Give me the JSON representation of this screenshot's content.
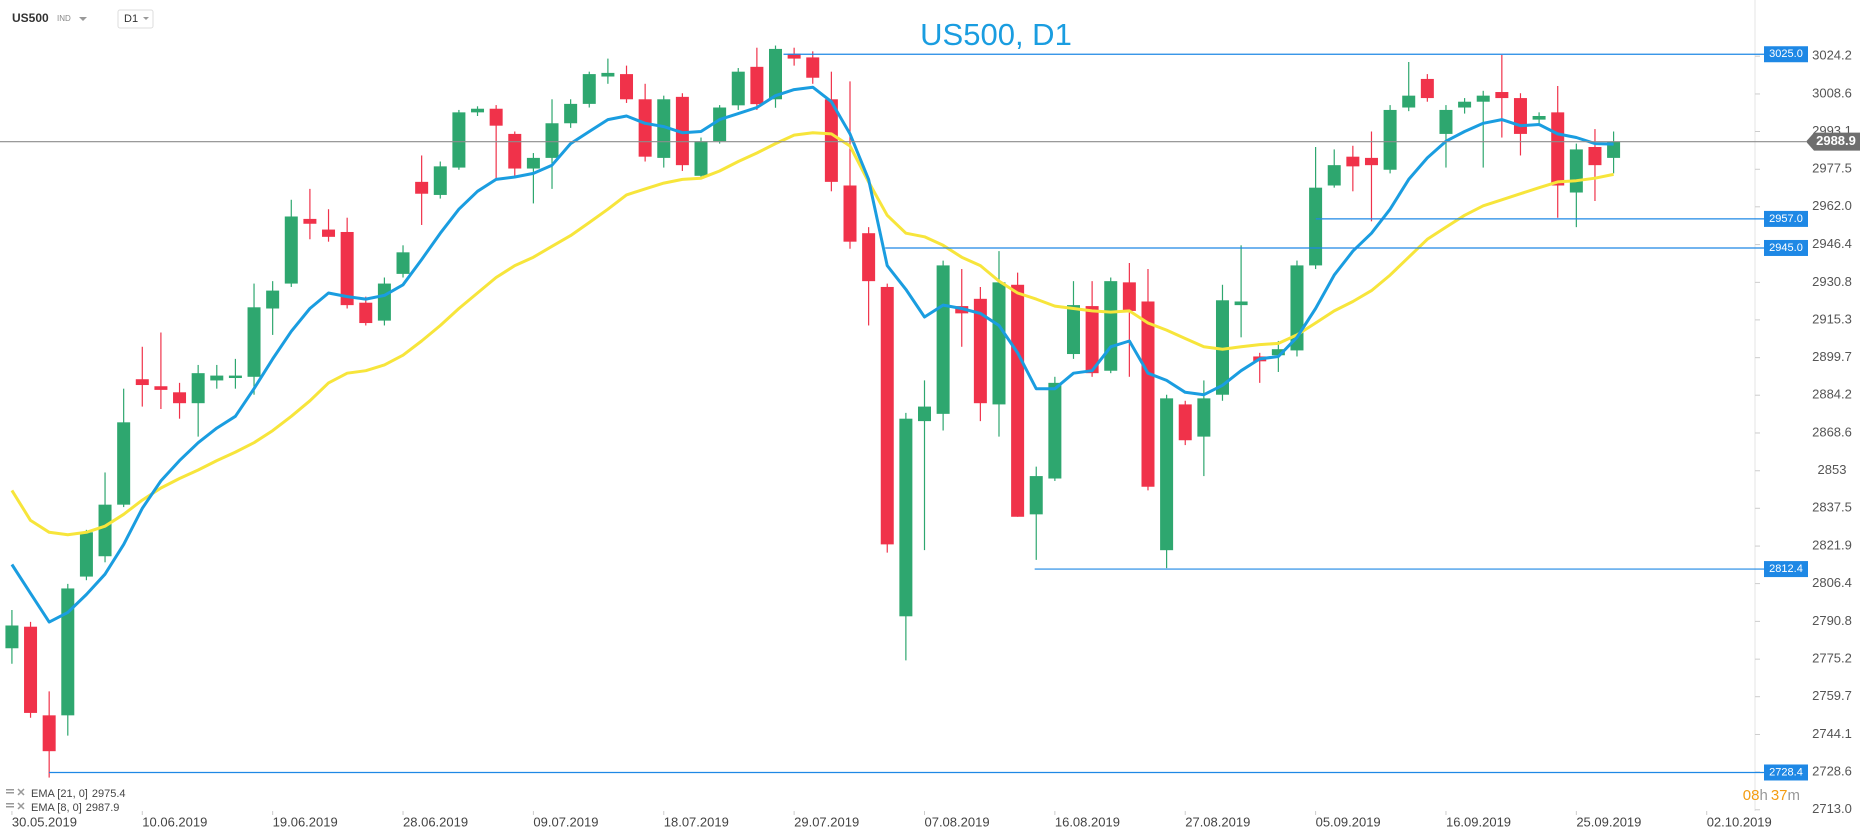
{
  "toolbar": {
    "symbol": "US500",
    "market": "IND",
    "timeframe": "D1"
  },
  "timer": [
    "08",
    "h",
    "37",
    "m"
  ],
  "chart_data": {
    "type": "candlestick",
    "title": "US500, D1",
    "up_color": "#2ea76f",
    "down_color": "#f0324a",
    "xlim": [
      -0.64,
      93.58
    ],
    "ylim": [
      2712.5,
      3047.4
    ],
    "xticks": [
      {
        "value": 0,
        "label": "30.05.2019"
      },
      {
        "value": 7,
        "label": "10.06.2019"
      },
      {
        "value": 14,
        "label": "19.06.2019"
      },
      {
        "value": 21,
        "label": "28.06.2019"
      },
      {
        "value": 28,
        "label": "09.07.2019"
      },
      {
        "value": 35,
        "label": "18.07.2019"
      },
      {
        "value": 42,
        "label": "29.07.2019"
      },
      {
        "value": 49,
        "label": "07.08.2019"
      },
      {
        "value": 56,
        "label": "16.08.2019"
      },
      {
        "value": 63,
        "label": "27.08.2019"
      },
      {
        "value": 70,
        "label": "05.09.2019"
      },
      {
        "value": 77,
        "label": "16.09.2019"
      },
      {
        "value": 84,
        "label": "25.09.2019"
      },
      {
        "value": 91,
        "label": "02.10.2019"
      }
    ],
    "yticks": [
      3024.2,
      3008.6,
      2993.1,
      2977.5,
      {
        "value": 2962,
        "label": "2962.0"
      },
      2946.4,
      2930.8,
      2915.3,
      2899.7,
      2884.2,
      2868.6,
      2853.0,
      2837.5,
      2821.9,
      2806.4,
      2790.8,
      2775.2,
      2759.7,
      2744.1,
      2728.6,
      {
        "value": 2713,
        "label": "2713.0"
      }
    ],
    "open": [
      2779.7,
      2788.6,
      2752.0,
      2752.0,
      2809.3,
      2817.7,
      2839.0,
      2890.8,
      2887.9,
      2885.4,
      2880.9,
      2890.3,
      2891.3,
      2891.8,
      2920.0,
      2930.3,
      2957.0,
      2952.6,
      2951.6,
      2922.4,
      2915.0,
      2934.3,
      2972.3,
      2966.9,
      2978.2,
      3001.0,
      3002.5,
      2992.1,
      2977.8,
      2982.2,
      2996.5,
      3004.5,
      3015.8,
      3016.8,
      3006.4,
      2982.2,
      3007.4,
      2974.8,
      2989.1,
      3003.9,
      3019.8,
      3006.4,
      3025.2,
      3023.7,
      3006.4,
      2970.8,
      2951.1,
      2928.9,
      2792.9,
      2873.5,
      2876.5,
      2921.0,
      2924.0,
      2880.4,
      2929.8,
      2835.0,
      2849.8,
      2901.2,
      2921.0,
      2894.3,
      2930.8,
      2922.9,
      2820.2,
      2880.4,
      2867.1,
      2884.4,
      2921.4,
      2900.2,
      2900.7,
      2902.7,
      2937.8,
      2970.8,
      2982.7,
      2982.2,
      2977.3,
      3003.0,
      3014.8,
      2992.1,
      3003.0,
      3005.4,
      3009.4,
      3006.9,
      2998.0,
      3001.0,
      2967.9,
      2986.7,
      2982.2
    ],
    "high": [
      2795.5,
      2790.6,
      2761.9,
      2806.3,
      2828.6,
      2852.3,
      2886.9,
      2904.2,
      2910.1,
      2889.3,
      2896.7,
      2896.7,
      2899.2,
      2930.3,
      2931.3,
      2964.9,
      2969.4,
      2961.0,
      2957.5,
      2924.9,
      2932.8,
      2946.1,
      2983.2,
      2980.7,
      3002.0,
      3003.5,
      3004.0,
      2993.1,
      2984.2,
      3006.4,
      3006.4,
      3017.8,
      3023.2,
      3020.3,
      3012.8,
      3007.9,
      3008.9,
      2990.6,
      3004.0,
      3019.3,
      3027.7,
      3028.6,
      3027.7,
      3026.2,
      3017.8,
      3013.8,
      2953.6,
      2930.3,
      2876.9,
      2890.3,
      2939.8,
      2936.3,
      2928.9,
      2943.7,
      2934.8,
      2854.7,
      2891.8,
      2931.3,
      2931.3,
      2932.8,
      2938.8,
      2936.3,
      2884.4,
      2881.9,
      2890.3,
      2929.8,
      2946.1,
      2901.7,
      2906.6,
      2939.8,
      2986.7,
      2985.7,
      2987.2,
      2993.1,
      3004.0,
      3021.8,
      3016.8,
      3004.0,
      3006.9,
      3009.9,
      3024.7,
      3008.9,
      3001.0,
      3011.9,
      2988.1,
      2994.1,
      2993.1
    ],
    "low": [
      2773.3,
      2751.0,
      2726.3,
      2743.6,
      2807.8,
      2815.2,
      2838.0,
      2879.5,
      2878.5,
      2874.5,
      2867.1,
      2886.9,
      2886.9,
      2884.4,
      2909.1,
      2928.9,
      2948.6,
      2947.6,
      2920.0,
      2913.0,
      2913.0,
      2932.8,
      2954.5,
      2965.4,
      2977.3,
      2999.5,
      2973.3,
      2974.3,
      2963.4,
      2969.4,
      2994.6,
      3003.0,
      3012.8,
      3004.9,
      2980.7,
      2978.2,
      2976.8,
      2973.3,
      2988.1,
      3002.0,
      3002.0,
      3002.9,
      3020.3,
      3012.8,
      2968.4,
      2944.7,
      2913.0,
      2819.2,
      2774.7,
      2820.2,
      2869.6,
      2904.2,
      2873.5,
      2867.1,
      2834.0,
      2816.2,
      2848.8,
      2899.2,
      2891.8,
      2893.3,
      2891.8,
      2844.9,
      2812.8,
      2863.6,
      2850.8,
      2881.9,
      2908.1,
      2889.3,
      2893.8,
      2900.2,
      2936.3,
      2969.9,
      2968.4,
      2956.0,
      2975.8,
      3001.5,
      3005.4,
      2978.2,
      3000.5,
      2978.2,
      2990.6,
      2983.2,
      2996.5,
      2957.5,
      2953.6,
      2964.4,
      2975.8
    ],
    "close": [
      2789.1,
      2753.0,
      2737.2,
      2804.4,
      2827.6,
      2839.0,
      2873.0,
      2888.4,
      2886.4,
      2880.9,
      2893.3,
      2892.3,
      2892.3,
      2920.5,
      2927.4,
      2958.0,
      2955.0,
      2949.6,
      2921.4,
      2914.0,
      2930.3,
      2943.2,
      2967.4,
      2978.7,
      3001.0,
      3002.5,
      2995.5,
      2977.8,
      2982.2,
      2996.5,
      3004.5,
      3016.8,
      3017.3,
      3006.4,
      2982.7,
      3006.4,
      2979.2,
      2989.1,
      3003.0,
      3017.8,
      3004.4,
      3027.2,
      3023.2,
      3015.3,
      2972.3,
      2947.6,
      2931.3,
      2822.6,
      2874.5,
      2879.5,
      2937.8,
      2918.0,
      2880.9,
      2930.8,
      2834.0,
      2850.8,
      2889.3,
      2921.4,
      2893.3,
      2931.3,
      2919.0,
      2846.4,
      2882.9,
      2865.6,
      2882.9,
      2923.4,
      2922.9,
      2898.2,
      2903.2,
      2937.8,
      2969.9,
      2979.2,
      2978.7,
      2979.2,
      3002.0,
      3007.9,
      3006.9,
      3002.0,
      3005.4,
      3007.9,
      3006.9,
      2992.1,
      2999.5,
      2970.8,
      2985.7,
      2979.2,
      2988.9
    ],
    "ema": [
      {
        "name": "EMA [21, 0]",
        "value": 2975.4,
        "color": "#f7e53b",
        "values": [
          2844.9,
          2832.5,
          2827.6,
          2826.6,
          2827.6,
          2830.1,
          2835.0,
          2840.9,
          2845.9,
          2849.8,
          2853.3,
          2857.2,
          2860.7,
          2864.6,
          2869.6,
          2875.5,
          2881.9,
          2889.3,
          2893.3,
          2894.3,
          2896.7,
          2900.7,
          2906.6,
          2913.0,
          2920.0,
          2926.4,
          2932.8,
          2937.7,
          2941.2,
          2945.7,
          2950.1,
          2955.5,
          2961.0,
          2966.9,
          2969.4,
          2971.8,
          2973.3,
          2973.8,
          2976.8,
          2980.7,
          2984.2,
          2988.1,
          2991.6,
          2992.6,
          2992.1,
          2987.1,
          2972.3,
          2958.5,
          2951.1,
          2949.6,
          2946.1,
          2941.2,
          2937.7,
          2931.3,
          2926.4,
          2923.9,
          2921.0,
          2920.0,
          2919.0,
          2918.5,
          2919.0,
          2914.0,
          2911.1,
          2907.6,
          2904.2,
          2903.2,
          2904.2,
          2905.1,
          2905.6,
          2909.1,
          2914.0,
          2919.0,
          2922.9,
          2927.4,
          2933.8,
          2941.2,
          2948.6,
          2953.6,
          2958.5,
          2962.4,
          2964.9,
          2967.4,
          2969.9,
          2972.3,
          2972.8,
          2973.8,
          2975.4
        ]
      },
      {
        "name": "EMA [8, 0]",
        "value": 2987.9,
        "color": "#1a9de0",
        "values": [
          2814.3,
          2802.4,
          2790.5,
          2794.5,
          2801.9,
          2810.3,
          2822.6,
          2837.5,
          2848.8,
          2857.2,
          2864.6,
          2870.6,
          2875.5,
          2886.9,
          2899.2,
          2910.6,
          2920.0,
          2926.4,
          2924.9,
          2923.9,
          2925.4,
          2929.8,
          2940.2,
          2951.1,
          2961.0,
          2968.4,
          2973.3,
          2974.3,
          2975.8,
          2979.2,
          2988.1,
          2993.1,
          2998.0,
          2999.5,
          2996.5,
          2995.1,
          2992.6,
          2993.1,
          2998.0,
          3000.5,
          3003.0,
          3007.9,
          3010.4,
          3011.4,
          3005.4,
          2992.1,
          2973.3,
          2937.7,
          2927.9,
          2916.5,
          2921.4,
          2920.0,
          2918.0,
          2913.0,
          2901.7,
          2886.9,
          2886.9,
          2893.3,
          2894.3,
          2904.2,
          2906.6,
          2893.3,
          2890.3,
          2885.4,
          2884.4,
          2888.3,
          2894.3,
          2899.2,
          2900.2,
          2908.1,
          2920.0,
          2933.8,
          2943.7,
          2951.1,
          2961.0,
          2973.3,
          2982.2,
          2989.1,
          2993.1,
          2996.5,
          2998.0,
          2995.5,
          2996.0,
          2992.1,
          2990.6,
          2988.1,
          2987.9
        ]
      }
    ],
    "levels": [
      {
        "value": 3025,
        "label": "3025.0"
      },
      {
        "value": 2957,
        "label": "2957.0"
      },
      {
        "value": 2945,
        "label": "2945.0"
      },
      2812.4,
      2728.4
    ],
    "level_color": "#1e88e5",
    "last_price": 2988.9
  }
}
